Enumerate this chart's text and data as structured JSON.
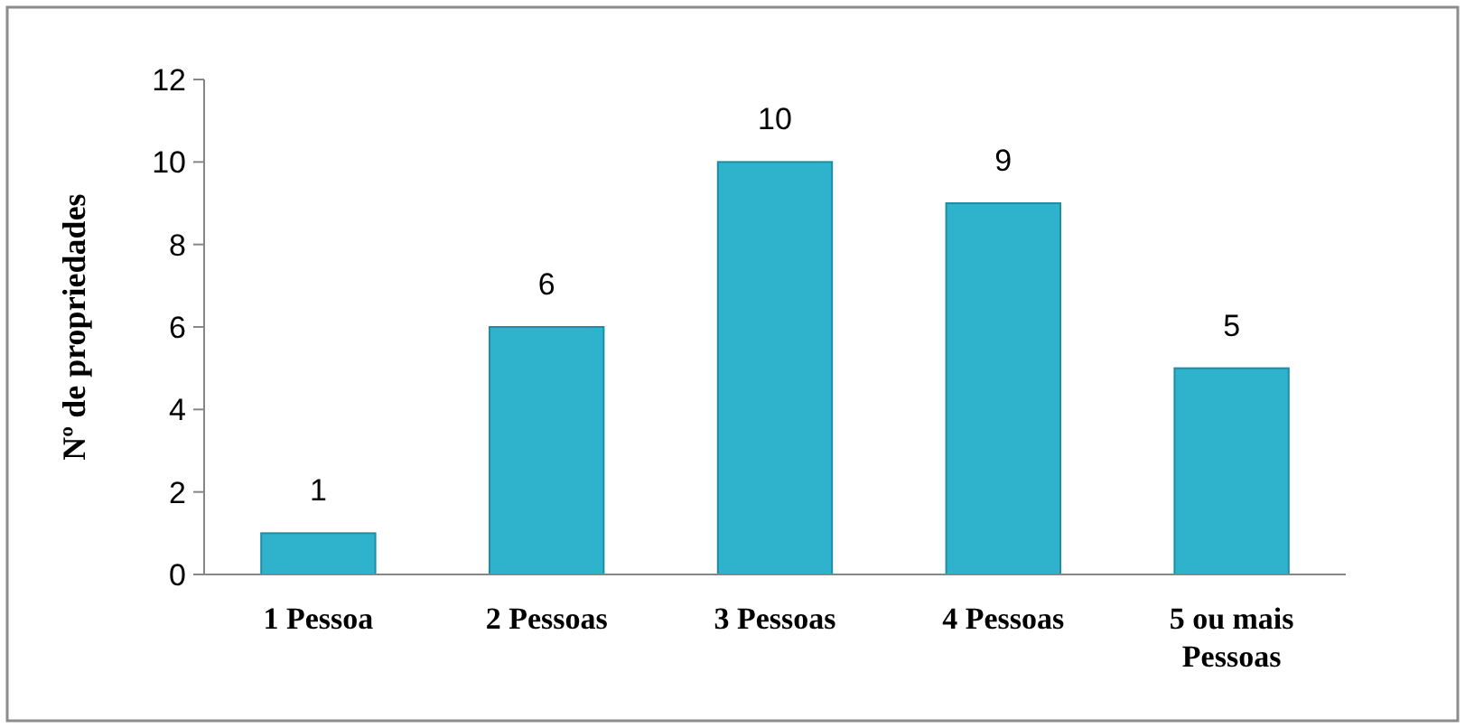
{
  "chart_data": {
    "type": "bar",
    "ylabel": "Nº de propriedades",
    "categories": [
      "1 Pessoa",
      "2 Pessoas",
      "3 Pessoas",
      "4 Pessoas",
      "5 ou mais Pessoas"
    ],
    "values": [
      1,
      6,
      10,
      9,
      5
    ],
    "color": "#2fb3cd",
    "ylim": [
      0,
      12
    ],
    "yticks": [
      0,
      2,
      4,
      6,
      8,
      10,
      12
    ],
    "grid": false,
    "data_labels": true
  }
}
